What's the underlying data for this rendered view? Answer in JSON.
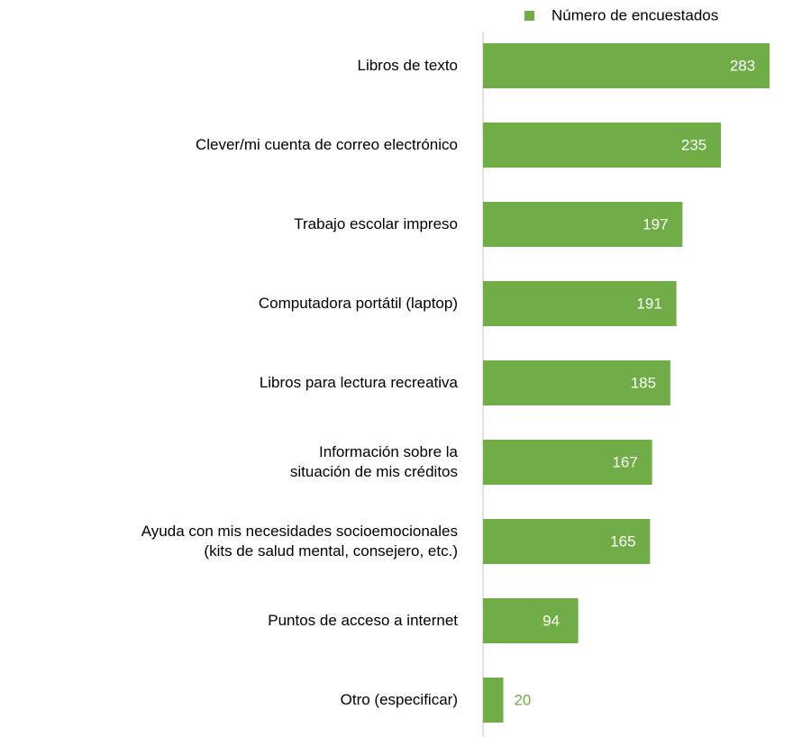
{
  "chart_data": {
    "type": "bar",
    "orientation": "horizontal",
    "categories": [
      "Libros de texto",
      "Clever/mi cuenta de correo electrónico",
      "Trabajo escolar impreso",
      "Computadora portátil (laptop)",
      "Libros para lectura recreativa",
      "Información sobre la\nsituación de mis créditos",
      "Ayuda con mis necesidades socioemocionales\n(kits de salud mental, consejero, etc.)",
      "Puntos de acceso a internet",
      "Otro (especificar)"
    ],
    "series": [
      {
        "name": "Número de encuestados",
        "color": "#70ad47",
        "values": [
          283,
          235,
          197,
          191,
          185,
          167,
          165,
          94,
          20
        ]
      }
    ],
    "legend": "top-right"
  }
}
